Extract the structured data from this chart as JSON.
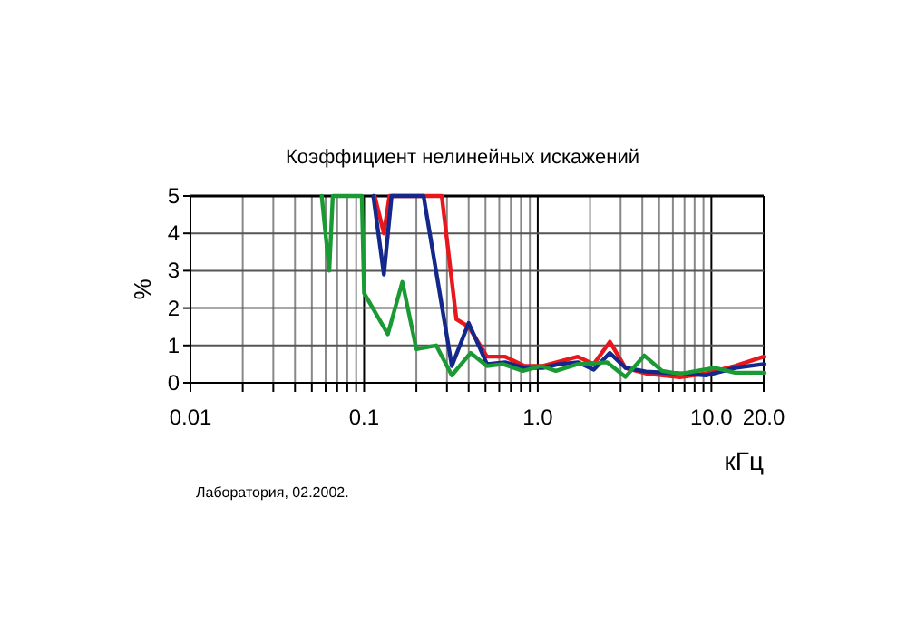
{
  "chart_data": {
    "type": "line",
    "title": "Коэффициент нелинейных искажений",
    "xlabel": "кГц",
    "ylabel": "%",
    "log": "x",
    "xlim": [
      0.01,
      20
    ],
    "ylim": [
      0,
      5
    ],
    "xticks": [
      {
        "value": 0.01,
        "label": "0.01"
      },
      {
        "value": 0.02,
        "label": null
      },
      {
        "value": 0.03,
        "label": null
      },
      {
        "value": 0.04,
        "label": null
      },
      {
        "value": 0.05,
        "label": null
      },
      {
        "value": 0.06,
        "label": null
      },
      {
        "value": 0.07,
        "label": null
      },
      {
        "value": 0.08,
        "label": null
      },
      {
        "value": 0.09,
        "label": null
      },
      {
        "value": 0.1,
        "label": "0.1"
      },
      {
        "value": 0.2,
        "label": null
      },
      {
        "value": 0.3,
        "label": null
      },
      {
        "value": 0.4,
        "label": null
      },
      {
        "value": 0.5,
        "label": null
      },
      {
        "value": 0.6,
        "label": null
      },
      {
        "value": 0.7,
        "label": null
      },
      {
        "value": 0.8,
        "label": null
      },
      {
        "value": 0.9,
        "label": null
      },
      {
        "value": 1,
        "label": "1.0"
      },
      {
        "value": 2,
        "label": null
      },
      {
        "value": 3,
        "label": null
      },
      {
        "value": 4,
        "label": null
      },
      {
        "value": 5,
        "label": null
      },
      {
        "value": 6,
        "label": null
      },
      {
        "value": 7,
        "label": null
      },
      {
        "value": 8,
        "label": null
      },
      {
        "value": 9,
        "label": null
      },
      {
        "value": 10,
        "label": "10.0"
      },
      {
        "value": 20,
        "label": "20.0"
      }
    ],
    "yticks": [
      0,
      1,
      2,
      3,
      4,
      5
    ],
    "grid": true,
    "line_style": "solid",
    "marker": "none",
    "series": [
      {
        "color": "#e8171b",
        "x": [
          0.115,
          0.13,
          0.14,
          0.28,
          0.34,
          0.4,
          0.51,
          0.65,
          0.84,
          1.07,
          1.7,
          2.1,
          2.6,
          3.2,
          4.2,
          6.6,
          9.3,
          13.7,
          20
        ],
        "values": [
          5,
          4,
          5,
          5,
          1.7,
          1.5,
          0.7,
          0.7,
          0.45,
          0.45,
          0.7,
          0.5,
          1.1,
          0.4,
          0.25,
          0.15,
          0.25,
          0.45,
          0.7
        ]
      },
      {
        "color": "#14288c",
        "x": [
          0.113,
          0.13,
          0.144,
          0.22,
          0.32,
          0.4,
          0.51,
          0.65,
          0.84,
          1.07,
          1.33,
          1.7,
          2.1,
          2.6,
          3.2,
          4.2,
          6.6,
          9.3,
          13.7,
          20
        ],
        "values": [
          5,
          2.9,
          5,
          5,
          0.45,
          1.6,
          0.5,
          0.55,
          0.4,
          0.4,
          0.5,
          0.55,
          0.35,
          0.8,
          0.4,
          0.3,
          0.25,
          0.2,
          0.4,
          0.5
        ]
      },
      {
        "color": "#1a9a32",
        "x": [
          0.057,
          0.063,
          0.066,
          0.097,
          0.1,
          0.137,
          0.166,
          0.2,
          0.26,
          0.32,
          0.41,
          0.51,
          0.63,
          0.82,
          1.05,
          1.27,
          1.7,
          2.5,
          3.2,
          4.1,
          5.2,
          6.6,
          10.5,
          13.7,
          20
        ],
        "values": [
          5,
          3,
          5,
          5,
          2.4,
          1.3,
          2.7,
          0.9,
          1,
          0.2,
          0.8,
          0.45,
          0.5,
          0.32,
          0.45,
          0.32,
          0.5,
          0.55,
          0.16,
          0.73,
          0.32,
          0.24,
          0.4,
          0.27,
          0.27
        ]
      }
    ],
    "annotations": [
      "Лаборатория, 02.2002."
    ]
  }
}
